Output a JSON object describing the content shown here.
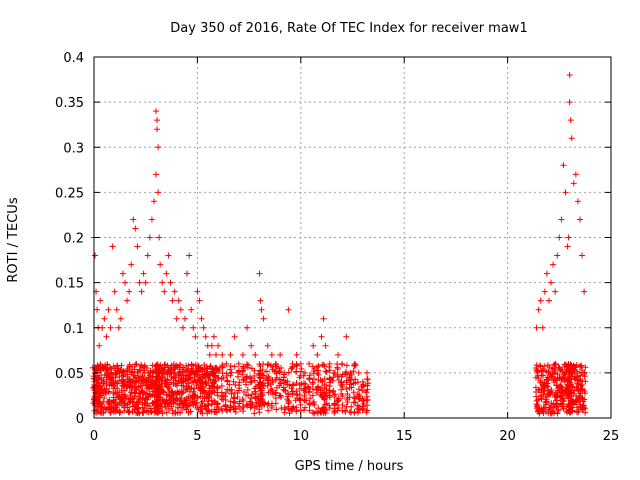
{
  "chart_data": {
    "type": "scatter",
    "title": "Day 350 of 2016, Rate Of TEC Index for receiver maw1",
    "xlabel": "GPS time / hours",
    "ylabel": "ROTI / TECUs",
    "xlim": [
      0,
      25
    ],
    "ylim": [
      0,
      0.4
    ],
    "xticks": [
      0,
      5,
      10,
      15,
      20,
      25
    ],
    "xtick_labels": [
      "0",
      "5",
      "10",
      "15",
      "20",
      "25"
    ],
    "yticks": [
      0,
      0.05,
      0.1,
      0.15,
      0.2,
      0.25,
      0.3,
      0.35,
      0.4
    ],
    "ytick_labels": [
      "0",
      "0.05",
      "0.1",
      "0.15",
      "0.2",
      "0.25",
      "0.3",
      "0.35",
      "0.4"
    ],
    "grid": true,
    "marker": "+",
    "marker_color": "#ff0000",
    "series": [
      {
        "name": "ROTI",
        "x": [
          0.0,
          0.05,
          0.1,
          0.15,
          0.2,
          0.25,
          0.3,
          0.4,
          0.5,
          0.6,
          0.7,
          0.8,
          0.9,
          1.0,
          1.1,
          1.2,
          1.3,
          1.4,
          1.5,
          1.6,
          1.7,
          1.8,
          1.9,
          2.0,
          2.1,
          2.2,
          2.3,
          2.4,
          2.5,
          2.6,
          2.7,
          2.8,
          2.9,
          3.0,
          3.0,
          3.05,
          3.05,
          3.1,
          3.1,
          3.15,
          3.2,
          3.3,
          3.4,
          3.5,
          3.6,
          3.7,
          3.8,
          3.9,
          4.0,
          4.1,
          4.2,
          4.3,
          4.4,
          4.5,
          4.6,
          4.7,
          4.8,
          4.9,
          5.0,
          5.1,
          5.2,
          5.3,
          5.4,
          5.5,
          5.6,
          5.7,
          5.8,
          5.9,
          6.0,
          6.2,
          6.4,
          6.6,
          6.8,
          7.0,
          7.2,
          7.4,
          7.6,
          7.8,
          8.0,
          8.05,
          8.1,
          8.2,
          8.4,
          8.6,
          8.8,
          9.0,
          9.2,
          9.4,
          9.6,
          9.8,
          10.0,
          10.2,
          10.4,
          10.6,
          10.8,
          11.0,
          11.1,
          11.2,
          11.4,
          11.6,
          11.8,
          12.0,
          12.2,
          12.4,
          12.6,
          12.8,
          13.0,
          13.2,
          21.4,
          21.5,
          21.6,
          21.7,
          21.8,
          21.9,
          22.0,
          22.1,
          22.2,
          22.3,
          22.4,
          22.5,
          22.6,
          22.7,
          22.8,
          22.9,
          22.95,
          23.0,
          23.0,
          23.05,
          23.1,
          23.2,
          23.3,
          23.4,
          23.5,
          23.6,
          23.7
        ],
        "y": [
          0.2,
          0.18,
          0.14,
          0.12,
          0.1,
          0.08,
          0.13,
          0.1,
          0.11,
          0.09,
          0.12,
          0.1,
          0.19,
          0.14,
          0.12,
          0.1,
          0.11,
          0.16,
          0.15,
          0.13,
          0.14,
          0.17,
          0.22,
          0.21,
          0.19,
          0.15,
          0.14,
          0.16,
          0.15,
          0.18,
          0.2,
          0.22,
          0.24,
          0.27,
          0.34,
          0.33,
          0.32,
          0.3,
          0.25,
          0.2,
          0.17,
          0.15,
          0.14,
          0.16,
          0.18,
          0.15,
          0.13,
          0.14,
          0.11,
          0.13,
          0.12,
          0.1,
          0.11,
          0.16,
          0.18,
          0.12,
          0.1,
          0.09,
          0.14,
          0.13,
          0.11,
          0.1,
          0.09,
          0.08,
          0.07,
          0.08,
          0.09,
          0.07,
          0.08,
          0.07,
          0.06,
          0.07,
          0.09,
          0.06,
          0.07,
          0.1,
          0.08,
          0.07,
          0.16,
          0.13,
          0.12,
          0.11,
          0.08,
          0.07,
          0.06,
          0.07,
          0.05,
          0.12,
          0.06,
          0.07,
          0.06,
          0.05,
          0.06,
          0.08,
          0.07,
          0.09,
          0.11,
          0.08,
          0.06,
          0.05,
          0.07,
          0.06,
          0.09,
          0.05,
          0.06,
          0.05,
          0.04,
          0.05,
          0.1,
          0.12,
          0.13,
          0.1,
          0.14,
          0.16,
          0.13,
          0.15,
          0.17,
          0.14,
          0.18,
          0.2,
          0.22,
          0.28,
          0.25,
          0.19,
          0.2,
          0.38,
          0.35,
          0.33,
          0.31,
          0.26,
          0.27,
          0.24,
          0.22,
          0.18,
          0.14
        ],
        "y_bulk_range": [
          0.005,
          0.06
        ]
      }
    ]
  }
}
